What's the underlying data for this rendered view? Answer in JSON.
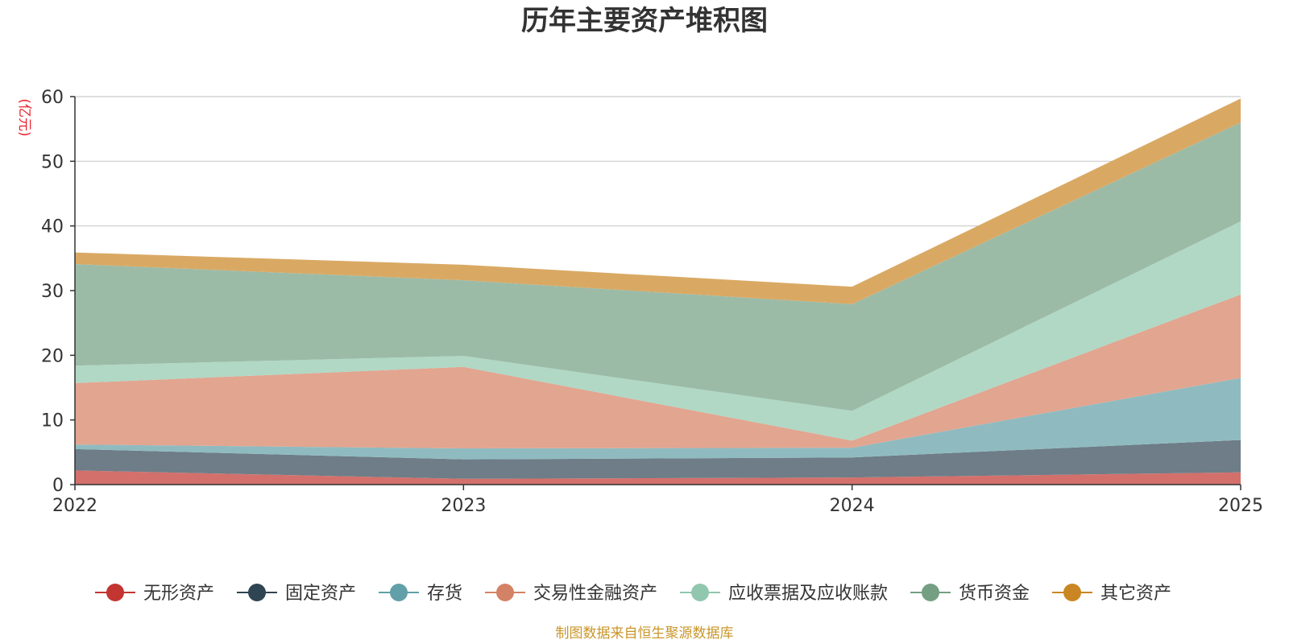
{
  "chart_data": {
    "type": "area",
    "stacked": true,
    "title": "历年主要资产堆积图",
    "unit_label": "(亿元)",
    "x": [
      "2022",
      "2023",
      "2024",
      "2025"
    ],
    "ylim": [
      0,
      60
    ],
    "yticks": [
      "0",
      "10",
      "20",
      "30",
      "40",
      "50",
      "60"
    ],
    "grid": true,
    "legend_position": "bottom",
    "series": [
      {
        "name": "无形资产",
        "values": [
          2.2,
          0.9,
          1.1,
          1.9
        ],
        "color": "#c23531",
        "fill_color": "#d3706c"
      },
      {
        "name": "固定资产",
        "values": [
          3.3,
          3.0,
          3.1,
          5.0
        ],
        "color": "#2f4554",
        "fill_color": "#6e7d87"
      },
      {
        "name": "存货",
        "values": [
          0.7,
          1.7,
          1.5,
          9.6
        ],
        "color": "#61a0a8",
        "fill_color": "#8fbbc0"
      },
      {
        "name": "交易性金融资产",
        "values": [
          9.5,
          12.6,
          1.1,
          12.9
        ],
        "color": "#d48265",
        "fill_color": "#e2a590"
      },
      {
        "name": "应收票据及应收账款",
        "values": [
          2.7,
          1.7,
          4.6,
          11.3
        ],
        "color": "#91c7ae",
        "fill_color": "#b0d8c5"
      },
      {
        "name": "货币资金",
        "values": [
          15.7,
          11.7,
          16.5,
          15.3
        ],
        "color": "#749f83",
        "fill_color": "#9cbba7"
      },
      {
        "name": "其它资产",
        "values": [
          1.8,
          2.4,
          2.7,
          3.7
        ],
        "color": "#ca8622",
        "fill_color": "#d9a964"
      }
    ]
  },
  "source_text": "制图数据来自恒生聚源数据库"
}
